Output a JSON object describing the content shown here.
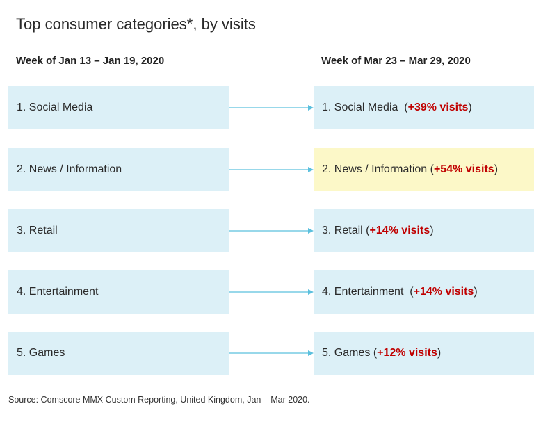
{
  "title": "Top consumer categories*, by visits",
  "left_header": "Week of Jan 13 – Jan 19, 2020",
  "right_header": "Week of Mar 23 – Mar 29, 2020",
  "rows": [
    {
      "left": "1. Social Media",
      "right_label": "1. Social Media",
      "right_open": "(",
      "right_delta": "+39% visits",
      "right_close": ")",
      "highlight": false
    },
    {
      "left": "2. News / Information",
      "right_label": "2. News / Information",
      "right_open": "(",
      "right_delta": "+54% visits",
      "right_close": ")",
      "highlight": true
    },
    {
      "left": "3. Retail",
      "right_label": "3. Retail",
      "right_open": "(",
      "right_delta": "+14% visits",
      "right_close": ")",
      "highlight": false
    },
    {
      "left": "4. Entertainment",
      "right_label": "4. Entertainment",
      "right_open": "(",
      "right_delta": "+14% visits",
      "right_close": ")",
      "highlight": false
    },
    {
      "left": "5. Games",
      "right_label": "5. Games",
      "right_open": "(",
      "right_delta": "+12% visits",
      "right_close": ")",
      "highlight": false
    }
  ],
  "source": "Source: Comscore MMX Custom Reporting, United Kingdom, Jan – Mar 2020.",
  "colors": {
    "box_fill": "#dcf0f7",
    "highlight_fill": "#fcf8c8",
    "delta_text": "#c00000",
    "arrow": "#5bc0de"
  }
}
